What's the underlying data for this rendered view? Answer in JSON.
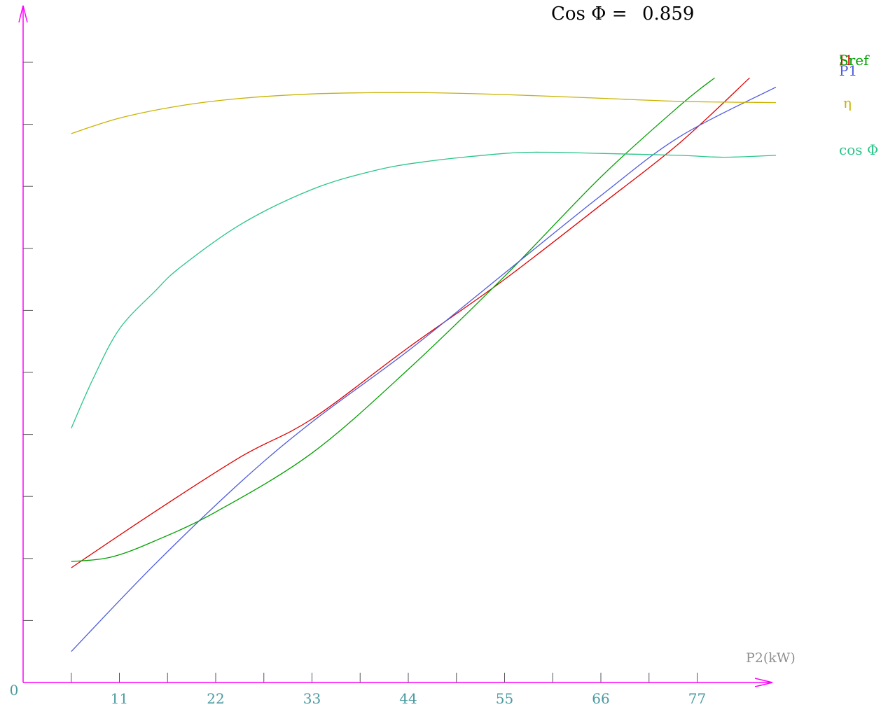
{
  "header": {
    "label": "Cos Φ =",
    "value": "0.859"
  },
  "axes": {
    "x_title": "P2(kW)",
    "origin_label": "0",
    "x_tick_labels": [
      "11",
      "22",
      "33",
      "44",
      "55",
      "66",
      "77"
    ]
  },
  "chart_data": {
    "type": "line",
    "title": "",
    "xlabel": "P2(kW)",
    "ylabel": "",
    "xlim": [
      0,
      86
    ],
    "ylim": [
      0,
      10
    ],
    "x_ticks": [
      11,
      22,
      33,
      44,
      55,
      66,
      77
    ],
    "y_ticks_count": 10,
    "grid": false,
    "series": [
      {
        "name": "I1",
        "color": "#e00000",
        "x": [
          5.5,
          15,
          25,
          33,
          44,
          55,
          66,
          75,
          83
        ],
        "y": [
          1.85,
          2.75,
          3.65,
          4.25,
          5.4,
          6.5,
          7.7,
          8.7,
          9.75
        ]
      },
      {
        "name": "Sref",
        "color": "#00a000",
        "x": [
          5.5,
          10,
          15,
          22,
          33,
          44,
          55,
          66,
          75,
          79
        ],
        "y": [
          1.95,
          2.02,
          2.28,
          2.75,
          3.7,
          5.05,
          6.55,
          8.15,
          9.3,
          9.75
        ]
      },
      {
        "name": "P1",
        "color": "#4d5bdc",
        "x": [
          5.5,
          15,
          25,
          33,
          44,
          55,
          66,
          75,
          86
        ],
        "y": [
          0.5,
          1.9,
          3.25,
          4.2,
          5.35,
          6.6,
          7.85,
          8.8,
          9.6
        ]
      },
      {
        "name": "η",
        "color": "#c9b200",
        "x": [
          5.5,
          11,
          18,
          25,
          33,
          40,
          46,
          55,
          66,
          75,
          86
        ],
        "y": [
          8.85,
          9.1,
          9.3,
          9.42,
          9.49,
          9.51,
          9.51,
          9.48,
          9.42,
          9.37,
          9.35
        ]
      },
      {
        "name": "cos Φ",
        "color": "#2ac58a",
        "x": [
          5.5,
          8,
          11,
          15,
          18,
          25,
          33,
          40,
          46,
          55,
          60,
          66,
          75,
          80,
          86
        ],
        "y": [
          4.1,
          4.9,
          5.7,
          6.3,
          6.7,
          7.4,
          7.95,
          8.25,
          8.4,
          8.53,
          8.55,
          8.53,
          8.5,
          8.47,
          8.5
        ]
      }
    ]
  }
}
